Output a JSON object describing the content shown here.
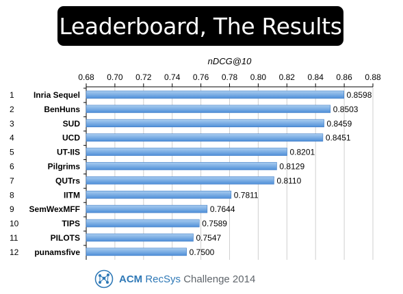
{
  "title": "Leaderboard, The Results",
  "footer": {
    "acm": "ACM",
    "recsys": "RecSys",
    "rest": "Challenge 2014"
  },
  "colors": {
    "bar_top": "#a9cdf0",
    "bar_bottom": "#4f8fd8",
    "bar_edge": "#3f7cc6",
    "grid": "#cfcfcf",
    "axis": "#000000"
  },
  "chart_data": {
    "type": "bar",
    "orientation": "horizontal",
    "xlabel": "nDCG@10",
    "xlim": [
      0.68,
      0.88
    ],
    "xticks": [
      "0.68",
      "0.70",
      "0.72",
      "0.74",
      "0.76",
      "0.78",
      "0.80",
      "0.82",
      "0.84",
      "0.86",
      "0.88"
    ],
    "grid": true,
    "ranks": [
      "1",
      "2",
      "3",
      "4",
      "5",
      "6",
      "7",
      "8",
      "9",
      "10",
      "11",
      "12"
    ],
    "categories": [
      "Inria Sequel",
      "BenHuns",
      "SUD",
      "UCD",
      "UT-IIS",
      "Pilgrims",
      "QUTrs",
      "IITM",
      "SemWexMFF",
      "TIPS",
      "PILOTS",
      "punamsfive"
    ],
    "values": [
      0.8598,
      0.8503,
      0.8459,
      0.8451,
      0.8201,
      0.8129,
      0.811,
      0.7811,
      0.7644,
      0.7589,
      0.7547,
      0.75
    ],
    "value_labels": [
      "0.8598",
      "0.8503",
      "0.8459",
      "0.8451",
      "0.8201",
      "0.8129",
      "0.8110",
      "0.7811",
      "0.7644",
      "0.7589",
      "0.7547",
      "0.7500"
    ]
  }
}
